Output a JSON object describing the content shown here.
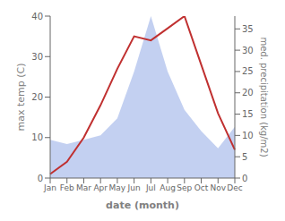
{
  "chart_data": {
    "type": "line",
    "xlabel": "date (month)",
    "ylabel": "max temp (C)",
    "y2label": "med. precipitation (kg/m2)",
    "categories": [
      "Jan",
      "Feb",
      "Mar",
      "Apr",
      "May",
      "Jun",
      "Jul",
      "Aug",
      "Sep",
      "Oct",
      "Nov",
      "Dec"
    ],
    "series": [
      {
        "type": "area",
        "axis": "y2",
        "color": "#b8c8ee",
        "values": [
          9,
          8,
          9,
          10,
          14,
          25,
          38,
          25,
          16,
          11,
          7,
          12
        ]
      },
      {
        "type": "line",
        "color": "#c03030",
        "values": [
          1,
          4,
          10,
          18,
          27,
          35,
          34,
          37,
          40,
          28,
          16,
          7
        ]
      }
    ],
    "ylim": [
      0,
      40
    ],
    "yticks": [
      0,
      10,
      20,
      30,
      40
    ],
    "y2lim": [
      0,
      38
    ],
    "y2ticks": [
      0,
      5,
      10,
      15,
      20,
      25,
      30,
      35
    ],
    "grid": false
  }
}
